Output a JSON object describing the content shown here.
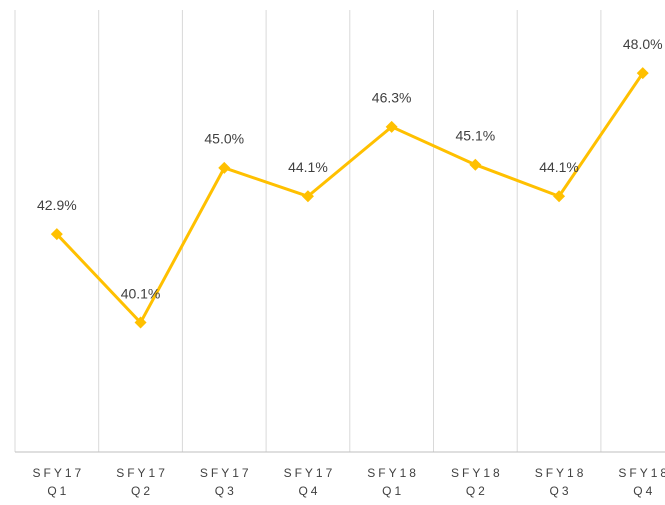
{
  "chart_data": {
    "type": "line",
    "categories": [
      [
        "SFY17",
        "Q1"
      ],
      [
        "SFY17",
        "Q2"
      ],
      [
        "SFY17",
        "Q3"
      ],
      [
        "SFY17",
        "Q4"
      ],
      [
        "SFY18",
        "Q1"
      ],
      [
        "SFY18",
        "Q2"
      ],
      [
        "SFY18",
        "Q3"
      ],
      [
        "SFY18",
        "Q4"
      ]
    ],
    "series": [
      {
        "color": "#FFC000",
        "values": [
          42.9,
          40.1,
          45.0,
          44.1,
          46.3,
          45.1,
          44.1,
          48.0
        ],
        "value_labels": [
          "42.9%",
          "40.1%",
          "45.0%",
          "44.1%",
          "46.3%",
          "45.1%",
          "44.1%",
          "48.0%"
        ]
      }
    ],
    "ylim": [
      36,
      50
    ],
    "grid": true
  }
}
